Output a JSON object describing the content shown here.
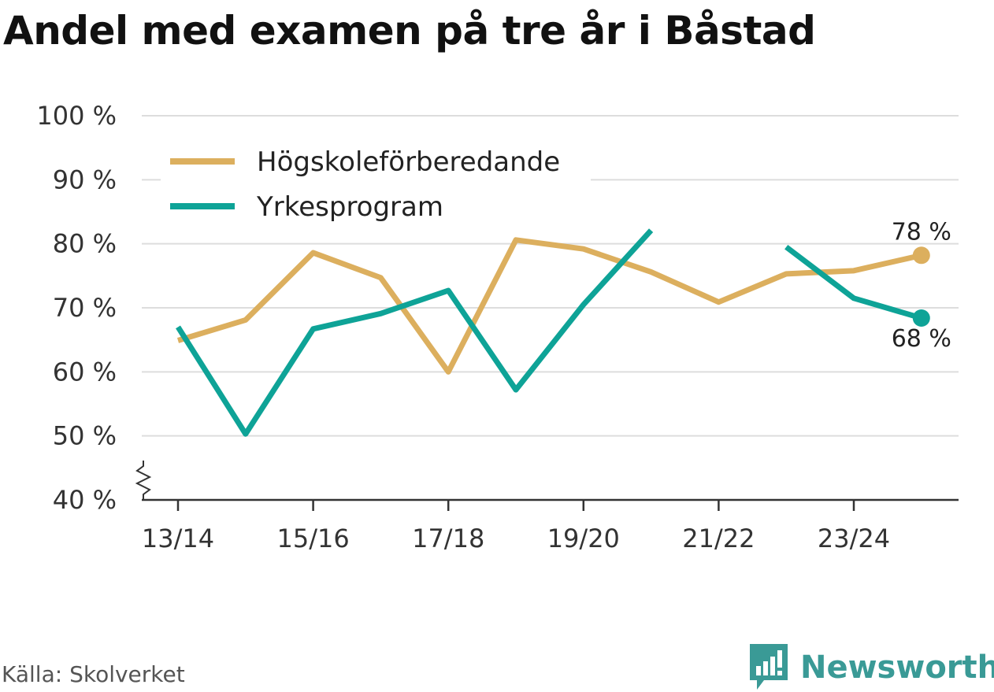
{
  "chart_data": {
    "type": "line",
    "title": "Andel med examen på tre år i Båstad",
    "source": "Källa: Skolverket",
    "brand": "Newsworthy",
    "x": [
      "13/14",
      "14/15",
      "15/16",
      "16/17",
      "17/18",
      "18/19",
      "19/20",
      "20/21",
      "21/22",
      "22/23",
      "23/24",
      "24/25"
    ],
    "x_tick_labels": [
      "13/14",
      "15/16",
      "17/18",
      "19/20",
      "21/22",
      "23/24"
    ],
    "y_ticks": [
      40,
      50,
      60,
      70,
      80,
      90,
      100
    ],
    "y_tick_labels": [
      "40 %",
      "50 %",
      "60 %",
      "70 %",
      "80 %",
      "90 %",
      "100 %"
    ],
    "ylim": [
      40,
      100
    ],
    "axis_break": true,
    "grid": true,
    "legend_position": "top-left",
    "series": [
      {
        "name": "Högskoleförberedande",
        "color": "#dcaf5e",
        "values": [
          64.9,
          68.1,
          78.6,
          74.7,
          60.0,
          80.6,
          79.2,
          75.6,
          70.9,
          75.3,
          75.8,
          78.2
        ],
        "end_label": "78 %"
      },
      {
        "name": "Yrkesprogram",
        "color": "#0ea397",
        "values": [
          67.0,
          50.3,
          66.7,
          69.1,
          72.7,
          57.2,
          70.5,
          82.1,
          null,
          79.5,
          71.5,
          68.4
        ],
        "end_label": "68 %"
      }
    ]
  }
}
